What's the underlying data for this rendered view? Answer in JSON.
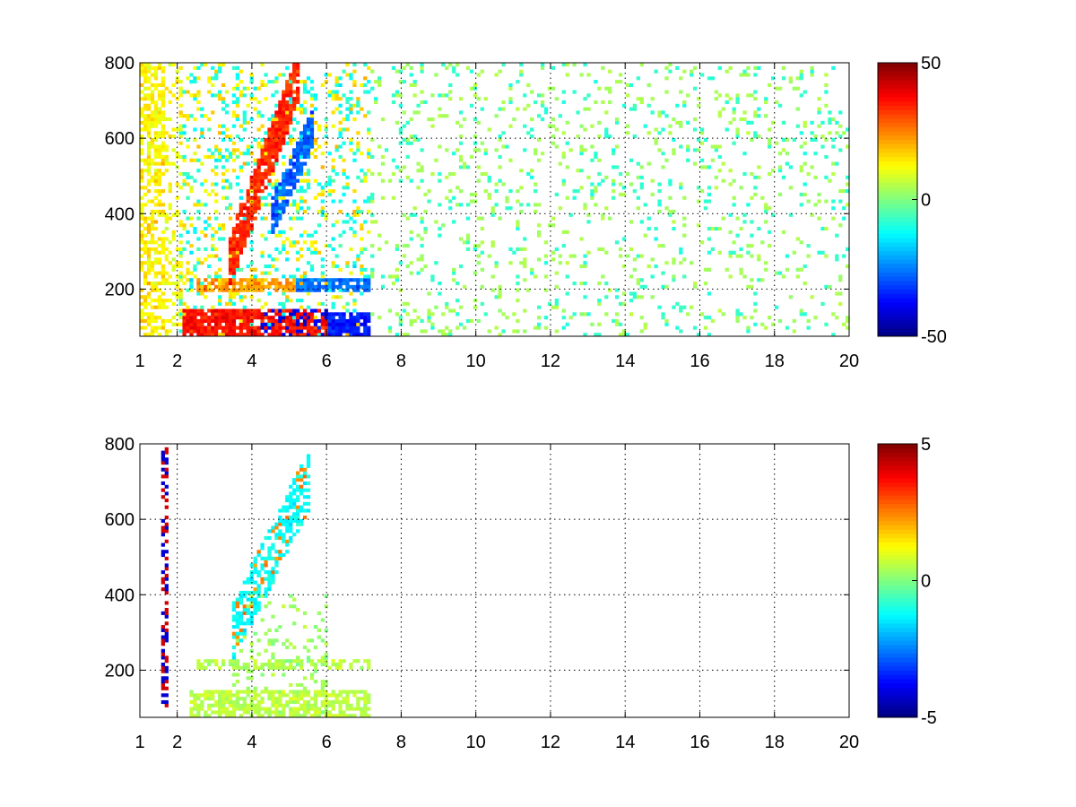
{
  "chart_data": [
    {
      "type": "heatmap",
      "title": "",
      "xlabel": "",
      "ylabel": "",
      "xlim": [
        1,
        20
      ],
      "ylim": [
        75,
        800
      ],
      "x_ticks": [
        1,
        2,
        4,
        6,
        8,
        10,
        12,
        14,
        16,
        18,
        20
      ],
      "y_ticks": [
        200,
        400,
        600,
        800
      ],
      "grid": true,
      "colormap": "jet",
      "colorbar": {
        "min": -50,
        "max": 50,
        "ticks": [
          50,
          0,
          -50
        ]
      },
      "features": [
        {
          "label": "low-frequency band",
          "x_range": [
            2.1,
            5.8
          ],
          "y": 100,
          "value": 45
        },
        {
          "label": "low-frequency band (negative)",
          "x_range": [
            4.2,
            7.2
          ],
          "y": 100,
          "value": -40
        },
        {
          "label": "band",
          "x_range": [
            2.5,
            5.5
          ],
          "y": 210,
          "value": 20
        },
        {
          "label": "band (negative)",
          "x_range": [
            5.2,
            7.2
          ],
          "y": 210,
          "value": -25
        },
        {
          "label": "diagonal ridge",
          "x_start": 3.5,
          "x_end": 5.2,
          "y_start": 300,
          "y_end": 750,
          "value": 40
        },
        {
          "label": "diagonal ridge (negative)",
          "x_start": 4.5,
          "x_end": 5.6,
          "y_start": 380,
          "y_end": 620,
          "value": -30
        }
      ]
    },
    {
      "type": "heatmap",
      "title": "",
      "xlabel": "",
      "ylabel": "",
      "xlim": [
        1,
        20
      ],
      "ylim": [
        75,
        800
      ],
      "x_ticks": [
        1,
        2,
        4,
        6,
        8,
        10,
        12,
        14,
        16,
        18,
        20
      ],
      "y_ticks": [
        200,
        400,
        600,
        800
      ],
      "grid": true,
      "colormap": "jet",
      "colorbar": {
        "min": -5,
        "max": 5,
        "ticks": [
          5,
          0,
          -5
        ]
      },
      "features": [
        {
          "label": "vertical streak",
          "x": 1.7,
          "y_range": [
            100,
            790
          ],
          "value": 4
        },
        {
          "label": "low band",
          "x_range": [
            2.3,
            7.2
          ],
          "y": 100,
          "value": 0.5
        },
        {
          "label": "band",
          "x_range": [
            2.5,
            7.2
          ],
          "y": 215,
          "value": 0.4
        },
        {
          "label": "diagonal ridge",
          "x_start": 3.5,
          "x_end": 5.5,
          "y_start": 300,
          "y_end": 700,
          "value": -1.5
        }
      ]
    }
  ]
}
